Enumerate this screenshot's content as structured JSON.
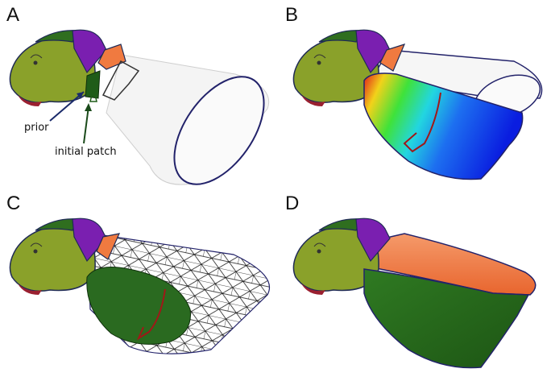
{
  "panels": [
    {
      "label": "A",
      "annotations": [
        "prior",
        "initial patch"
      ]
    },
    {
      "label": "B"
    },
    {
      "label": "C"
    },
    {
      "label": "D"
    }
  ]
}
